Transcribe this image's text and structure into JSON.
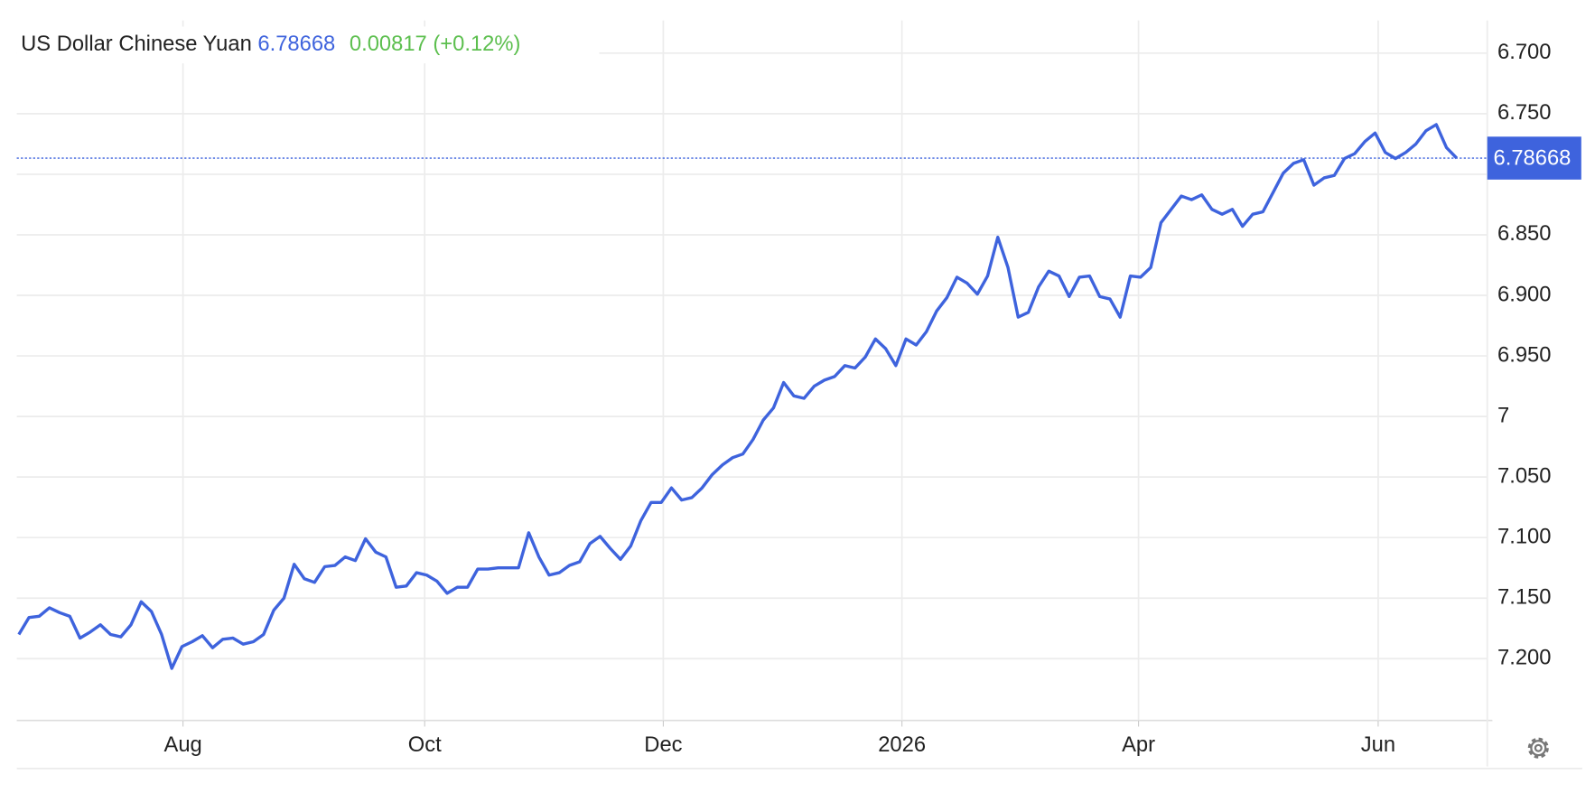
{
  "chart_data": {
    "type": "line",
    "title": "US Dollar Chinese Yuan",
    "price": "6.78668",
    "change": "0.00817 (+0.12%)",
    "last_value": 6.78668,
    "last_value_label": "6.78668",
    "y_inverted": true,
    "ylim": [
      6.673,
      7.251
    ],
    "yticks": [
      {
        "value": 6.7,
        "label": "6.700"
      },
      {
        "value": 6.75,
        "label": "6.750"
      },
      {
        "value": 6.8,
        "label": null
      },
      {
        "value": 6.85,
        "label": "6.850"
      },
      {
        "value": 6.9,
        "label": "6.900"
      },
      {
        "value": 6.95,
        "label": "6.950"
      },
      7,
      {
        "value": 7.05,
        "label": "7.050"
      },
      {
        "value": 7.1,
        "label": "7.100"
      },
      {
        "value": 7.15,
        "label": "7.150"
      },
      {
        "value": 7.2,
        "label": "7.200"
      }
    ],
    "xlim": [
      -0.2,
      144
    ],
    "xticks": [
      {
        "value": 16.1,
        "label": "Aug"
      },
      {
        "value": 39.8,
        "label": "Oct"
      },
      {
        "value": 63.2,
        "label": "Dec"
      },
      {
        "value": 86.6,
        "label": "2026"
      },
      {
        "value": 109.8,
        "label": "Apr"
      },
      {
        "value": 133.3,
        "label": "Jun"
      }
    ],
    "grid": true,
    "series": [
      {
        "color": "#3e63dd",
        "values": [
          7.18,
          7.166,
          7.165,
          7.158,
          7.162,
          7.165,
          7.183,
          7.178,
          7.172,
          7.18,
          7.182,
          7.172,
          7.153,
          7.161,
          7.18,
          7.208,
          7.19,
          7.186,
          7.181,
          7.191,
          7.184,
          7.183,
          7.188,
          7.186,
          7.18,
          7.16,
          7.15,
          7.122,
          7.134,
          7.137,
          7.124,
          7.123,
          7.116,
          7.119,
          7.101,
          7.112,
          7.116,
          7.141,
          7.14,
          7.129,
          7.131,
          7.136,
          7.146,
          7.141,
          7.141,
          7.126,
          7.126,
          7.125,
          7.125,
          7.125,
          7.096,
          7.116,
          7.131,
          7.129,
          7.123,
          7.12,
          7.105,
          7.099,
          7.109,
          7.118,
          7.107,
          7.086,
          7.071,
          7.071,
          7.059,
          7.069,
          7.067,
          7.059,
          7.048,
          7.04,
          7.034,
          7.031,
          7.019,
          7.003,
          6.993,
          6.972,
          6.983,
          6.985,
          6.975,
          6.97,
          6.967,
          6.958,
          6.96,
          6.951,
          6.936,
          6.944,
          6.958,
          6.936,
          6.941,
          6.93,
          6.913,
          6.902,
          6.885,
          6.89,
          6.899,
          6.884,
          6.852,
          6.877,
          6.918,
          6.914,
          6.893,
          6.88,
          6.884,
          6.901,
          6.885,
          6.884,
          6.901,
          6.903,
          6.918,
          6.884,
          6.885,
          6.877,
          6.84,
          6.829,
          6.818,
          6.821,
          6.817,
          6.829,
          6.833,
          6.829,
          6.843,
          6.833,
          6.831,
          6.815,
          6.799,
          6.791,
          6.788,
          6.809,
          6.803,
          6.801,
          6.787,
          6.783,
          6.773,
          6.766,
          6.782,
          6.787,
          6.782,
          6.775,
          6.764,
          6.759,
          6.778,
          6.78668
        ]
      }
    ]
  }
}
